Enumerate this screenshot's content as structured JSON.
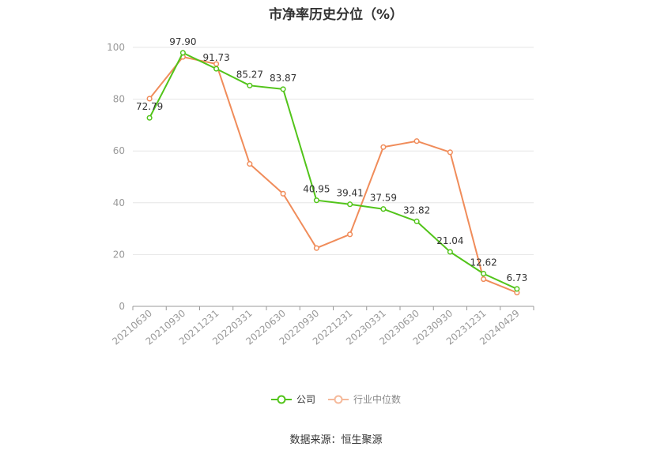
{
  "chart_data": {
    "type": "line",
    "title": "市净率历史分位（%）",
    "categories": [
      "20210630",
      "20210930",
      "20211231",
      "20220331",
      "20220630",
      "20220930",
      "20221231",
      "20230331",
      "20230630",
      "20230930",
      "20231231",
      "20240429"
    ],
    "ylim": [
      0,
      100
    ],
    "yticks": [
      0,
      20,
      40,
      60,
      80,
      100
    ],
    "grid": true,
    "legend_position": "bottom",
    "series": [
      {
        "name": "公司",
        "color": "#52c41a",
        "values": [
          72.79,
          97.9,
          91.73,
          85.27,
          83.87,
          40.95,
          39.41,
          37.59,
          32.82,
          21.04,
          12.62,
          6.73
        ],
        "labels": [
          "72.79",
          "97.90",
          "91.73",
          "85.27",
          "83.87",
          "40.95",
          "39.41",
          "37.59",
          "32.82",
          "21.04",
          "12.62",
          "6.73"
        ]
      },
      {
        "name": "行业中位数",
        "color": "#f08c5a",
        "values": [
          80.2,
          96.3,
          93.6,
          55.0,
          43.5,
          22.5,
          27.8,
          61.5,
          63.8,
          59.5,
          10.5,
          5.3
        ]
      }
    ]
  },
  "legend": {
    "company": "公司",
    "industry": "行业中位数"
  },
  "source": "数据来源：恒生聚源"
}
